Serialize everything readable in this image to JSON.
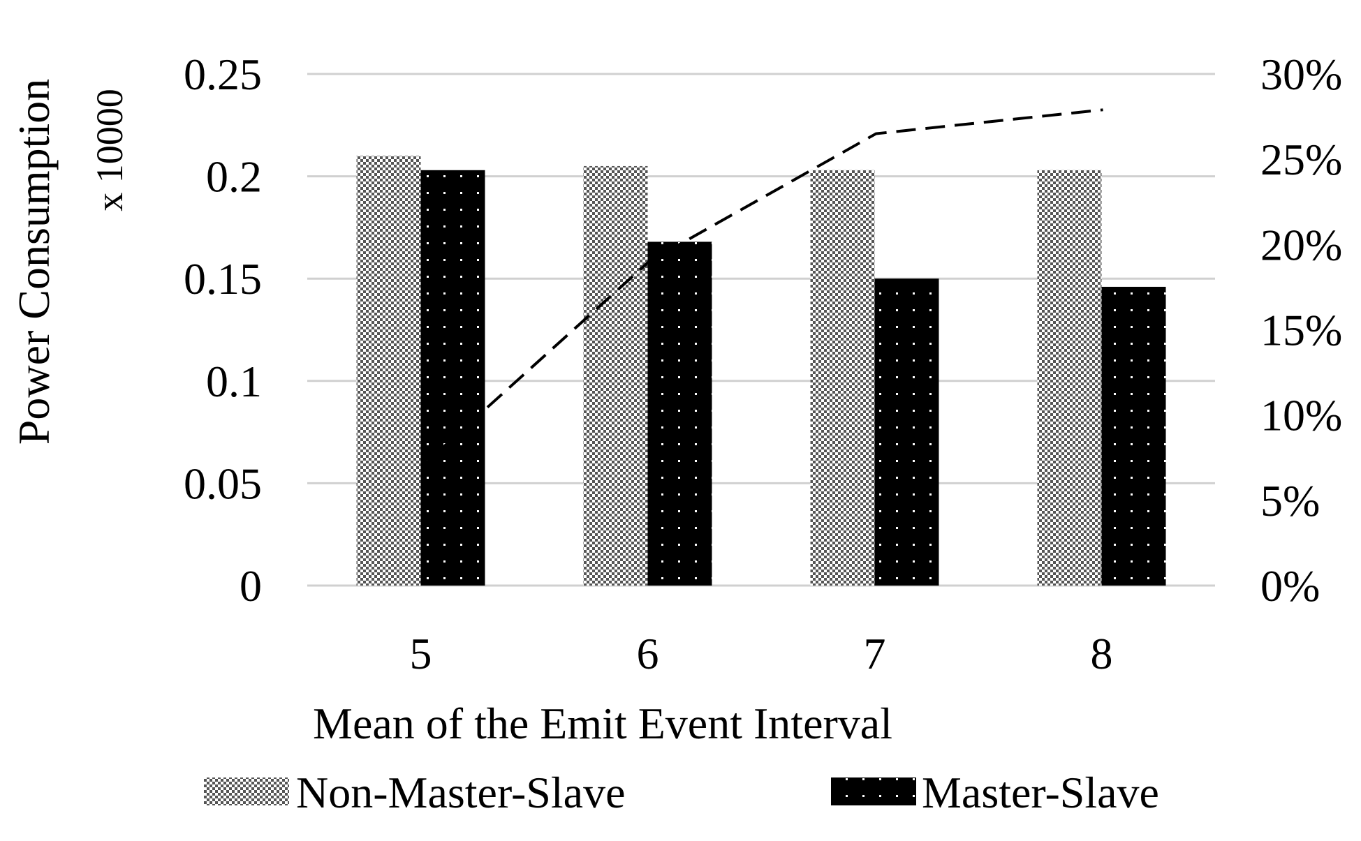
{
  "chart_data": {
    "type": "bar",
    "title": "",
    "xlabel": "Mean of the Emit Event Interval",
    "ylabel": "Power Consumption",
    "ylabel_multiplier": "x 10000",
    "categories": [
      "5",
      "6",
      "7",
      "8"
    ],
    "ylim": [
      0,
      0.25
    ],
    "yticks": [
      "0",
      "0.05",
      "0.1",
      "0.15",
      "0.2",
      "0.25"
    ],
    "y2lim": [
      0,
      0.3
    ],
    "y2ticks": [
      "0%",
      "5%",
      "10%",
      "15%",
      "20%",
      "25%",
      "30%"
    ],
    "grid": true,
    "legend_position": "bottom",
    "series": [
      {
        "name": "Non-Master-Slave",
        "type": "bar",
        "axis": "left",
        "values": [
          0.21,
          0.205,
          0.203,
          0.203
        ],
        "color": "#9a9a9a"
      },
      {
        "name": "Master-Slave",
        "type": "bar",
        "axis": "left",
        "values": [
          0.203,
          0.168,
          0.15,
          0.146
        ],
        "color": "#000000"
      },
      {
        "type": "line",
        "axis": "right",
        "style": "dashed",
        "values": [
          0.07,
          0.19,
          0.265,
          0.279
        ],
        "color": "#000000"
      }
    ]
  }
}
